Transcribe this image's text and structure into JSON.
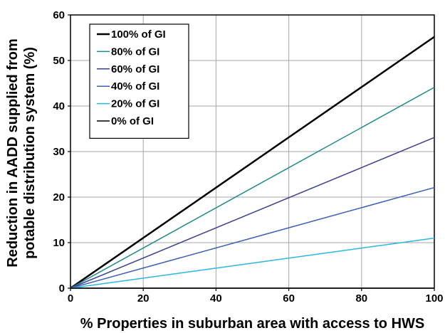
{
  "chart_data": {
    "type": "line",
    "title": "",
    "xlabel": "% Properties in suburban area with access to HWS",
    "ylabel_lines": [
      "Reduction in AADD supplied from",
      "potable distribution system (%)"
    ],
    "xlim": [
      0,
      100
    ],
    "ylim": [
      0,
      60
    ],
    "xticks": [
      0,
      20,
      40,
      60,
      80,
      100
    ],
    "yticks": [
      0,
      10,
      20,
      30,
      40,
      50,
      60
    ],
    "grid": true,
    "legend_position": "top-left",
    "x": [
      0,
      100
    ],
    "series": [
      {
        "name": "100% of GI",
        "values": [
          0,
          55.2
        ],
        "color": "#000000",
        "width": 2.5
      },
      {
        "name": "80% of GI",
        "values": [
          0,
          44.1
        ],
        "color": "#1f8a8a",
        "width": 1.5
      },
      {
        "name": "60% of GI",
        "values": [
          0,
          33.1
        ],
        "color": "#3a3f8f",
        "width": 1.5
      },
      {
        "name": "40% of GI",
        "values": [
          0,
          22.1
        ],
        "color": "#3b5fb5",
        "width": 1.5
      },
      {
        "name": "20% of GI",
        "values": [
          0,
          11.0
        ],
        "color": "#29b6e0",
        "width": 1.5
      },
      {
        "name": "0% of GI",
        "values": [
          0,
          0
        ],
        "color": "#000000",
        "width": 1.5
      }
    ]
  }
}
